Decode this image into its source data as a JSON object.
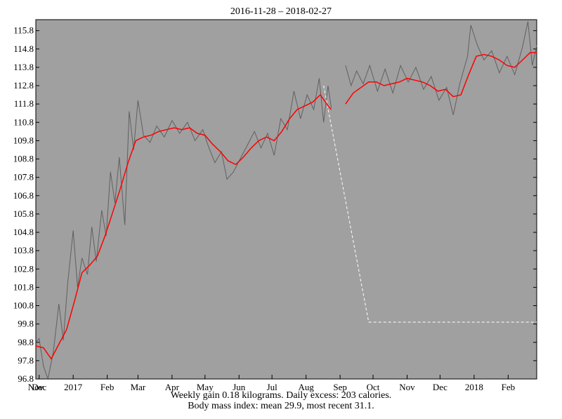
{
  "chart_data": {
    "type": "line",
    "title": "2016-11-28 – 2018-02-27",
    "date_range": [
      "2016-11-28",
      "2018-02-27"
    ],
    "ylim": [
      96.8,
      116.4
    ],
    "y_ticks": [
      96.8,
      97.8,
      98.8,
      99.8,
      100.8,
      101.8,
      102.8,
      103.8,
      104.8,
      105.8,
      106.8,
      107.8,
      108.8,
      109.8,
      110.8,
      111.8,
      112.8,
      113.8,
      114.8,
      115.8
    ],
    "y_tick_labels": [
      "96.8",
      "97.8",
      "98.8",
      "99.8",
      "100.8",
      "101.8",
      "102.8",
      "103.8",
      "104.8",
      "105.8",
      "106.8",
      "107.8",
      "108.8",
      "109.8",
      "110.8",
      "111.8",
      "112.8",
      "113.8",
      "114.8",
      "115.8"
    ],
    "x_ticks": [
      {
        "label": "Nov",
        "date": "2016-11-28"
      },
      {
        "label": "Dec",
        "date": "2016-12-01"
      },
      {
        "label": "2017",
        "date": "2017-01-01"
      },
      {
        "label": "Feb",
        "date": "2017-02-01"
      },
      {
        "label": "Mar",
        "date": "2017-03-01"
      },
      {
        "label": "Apr",
        "date": "2017-04-01"
      },
      {
        "label": "May",
        "date": "2017-05-01"
      },
      {
        "label": "Jun",
        "date": "2017-06-01"
      },
      {
        "label": "Jul",
        "date": "2017-07-01"
      },
      {
        "label": "Aug",
        "date": "2017-08-01"
      },
      {
        "label": "Sep",
        "date": "2017-09-01"
      },
      {
        "label": "Oct",
        "date": "2017-10-01"
      },
      {
        "label": "Nov",
        "date": "2017-11-01"
      },
      {
        "label": "Dec",
        "date": "2017-12-01"
      },
      {
        "label": "2018",
        "date": "2018-01-01"
      },
      {
        "label": "Feb",
        "date": "2018-02-01"
      }
    ],
    "series": [
      {
        "color": "#ff0000",
        "values": [
          [
            "2016-11-28",
            98.6
          ],
          [
            "2016-12-05",
            98.5
          ],
          [
            "2016-12-12",
            97.9
          ],
          [
            "2016-12-19",
            98.7
          ],
          [
            "2016-12-26",
            99.5
          ],
          [
            "2017-01-02",
            101.0
          ],
          [
            "2017-01-09",
            102.6
          ],
          [
            "2017-01-16",
            103.0
          ],
          [
            "2017-01-23",
            103.5
          ],
          [
            "2017-01-30",
            104.6
          ],
          [
            "2017-02-06",
            105.9
          ],
          [
            "2017-02-13",
            107.2
          ],
          [
            "2017-02-20",
            108.6
          ],
          [
            "2017-02-27",
            109.8
          ],
          [
            "2017-03-06",
            110.0
          ],
          [
            "2017-03-13",
            110.1
          ],
          [
            "2017-03-20",
            110.3
          ],
          [
            "2017-03-27",
            110.4
          ],
          [
            "2017-04-03",
            110.5
          ],
          [
            "2017-04-10",
            110.4
          ],
          [
            "2017-04-17",
            110.5
          ],
          [
            "2017-04-24",
            110.2
          ],
          [
            "2017-05-01",
            110.1
          ],
          [
            "2017-05-08",
            109.6
          ],
          [
            "2017-05-15",
            109.2
          ],
          [
            "2017-05-22",
            108.7
          ],
          [
            "2017-05-29",
            108.5
          ],
          [
            "2017-06-05",
            108.9
          ],
          [
            "2017-06-12",
            109.4
          ],
          [
            "2017-06-19",
            109.8
          ],
          [
            "2017-06-26",
            110.0
          ],
          [
            "2017-07-03",
            109.8
          ],
          [
            "2017-07-10",
            110.3
          ],
          [
            "2017-07-17",
            111.0
          ],
          [
            "2017-07-24",
            111.5
          ],
          [
            "2017-07-31",
            111.7
          ],
          [
            "2017-08-07",
            111.9
          ],
          [
            "2017-08-14",
            112.3
          ],
          [
            "2017-08-21",
            111.7
          ],
          [
            "2017-08-24",
            111.5
          ],
          null,
          [
            "2017-09-06",
            111.8
          ],
          [
            "2017-09-13",
            112.4
          ],
          [
            "2017-09-20",
            112.7
          ],
          [
            "2017-09-27",
            113.0
          ],
          [
            "2017-10-04",
            113.0
          ],
          [
            "2017-10-11",
            112.8
          ],
          [
            "2017-10-18",
            112.9
          ],
          [
            "2017-10-25",
            113.0
          ],
          [
            "2017-11-01",
            113.2
          ],
          [
            "2017-11-08",
            113.1
          ],
          [
            "2017-11-15",
            113.0
          ],
          [
            "2017-11-22",
            112.8
          ],
          [
            "2017-11-29",
            112.5
          ],
          [
            "2017-12-06",
            112.6
          ],
          [
            "2017-12-13",
            112.2
          ],
          [
            "2017-12-20",
            112.3
          ],
          [
            "2017-12-27",
            113.4
          ],
          [
            "2018-01-03",
            114.4
          ],
          [
            "2018-01-10",
            114.5
          ],
          [
            "2018-01-17",
            114.4
          ],
          [
            "2018-01-24",
            114.2
          ],
          [
            "2018-01-31",
            113.9
          ],
          [
            "2018-02-07",
            113.8
          ],
          [
            "2018-02-14",
            114.2
          ],
          [
            "2018-02-21",
            114.6
          ],
          [
            "2018-02-27",
            114.6
          ]
        ]
      },
      {
        "color": "#606060",
        "values": [
          [
            "2016-11-28",
            98.8
          ],
          [
            "2016-12-01",
            99.0
          ],
          [
            "2016-12-05",
            97.5
          ],
          [
            "2016-12-09",
            96.8
          ],
          [
            "2016-12-14",
            98.3
          ],
          [
            "2016-12-19",
            100.9
          ],
          [
            "2016-12-23",
            98.9
          ],
          [
            "2016-12-27",
            102.0
          ],
          [
            "2017-01-01",
            104.9
          ],
          [
            "2017-01-05",
            101.8
          ],
          [
            "2017-01-09",
            103.4
          ],
          [
            "2017-01-14",
            102.5
          ],
          [
            "2017-01-18",
            105.1
          ],
          [
            "2017-01-22",
            103.2
          ],
          [
            "2017-01-27",
            106.0
          ],
          [
            "2017-01-31",
            104.6
          ],
          [
            "2017-02-04",
            108.1
          ],
          [
            "2017-02-08",
            106.4
          ],
          [
            "2017-02-12",
            108.9
          ],
          [
            "2017-02-17",
            105.2
          ],
          [
            "2017-02-21",
            111.4
          ],
          [
            "2017-02-25",
            109.3
          ],
          [
            "2017-03-01",
            112.0
          ],
          [
            "2017-03-06",
            110.1
          ],
          [
            "2017-03-12",
            109.7
          ],
          [
            "2017-03-18",
            110.6
          ],
          [
            "2017-03-25",
            110.0
          ],
          [
            "2017-04-01",
            110.9
          ],
          [
            "2017-04-08",
            110.2
          ],
          [
            "2017-04-15",
            110.8
          ],
          [
            "2017-04-22",
            109.8
          ],
          [
            "2017-04-29",
            110.4
          ],
          [
            "2017-05-04",
            109.5
          ],
          [
            "2017-05-10",
            108.6
          ],
          [
            "2017-05-16",
            109.2
          ],
          [
            "2017-05-21",
            107.7
          ],
          [
            "2017-05-27",
            108.1
          ],
          [
            "2017-06-02",
            108.8
          ],
          [
            "2017-06-09",
            109.6
          ],
          [
            "2017-06-15",
            110.3
          ],
          [
            "2017-06-21",
            109.4
          ],
          [
            "2017-06-27",
            110.2
          ],
          [
            "2017-07-03",
            109.0
          ],
          [
            "2017-07-09",
            111.0
          ],
          [
            "2017-07-15",
            110.4
          ],
          [
            "2017-07-21",
            112.5
          ],
          [
            "2017-07-27",
            111.0
          ],
          [
            "2017-08-02",
            112.3
          ],
          [
            "2017-08-08",
            111.5
          ],
          [
            "2017-08-13",
            113.2
          ],
          [
            "2017-08-17",
            110.8
          ],
          [
            "2017-08-21",
            112.8
          ],
          [
            "2017-08-24",
            111.6
          ],
          null,
          [
            "2017-09-06",
            113.9
          ],
          [
            "2017-09-11",
            112.8
          ],
          [
            "2017-09-16",
            113.6
          ],
          [
            "2017-09-22",
            112.9
          ],
          [
            "2017-09-28",
            113.9
          ],
          [
            "2017-10-05",
            112.5
          ],
          [
            "2017-10-12",
            113.7
          ],
          [
            "2017-10-19",
            112.4
          ],
          [
            "2017-10-26",
            113.9
          ],
          [
            "2017-11-02",
            113.0
          ],
          [
            "2017-11-09",
            113.8
          ],
          [
            "2017-11-16",
            112.6
          ],
          [
            "2017-11-23",
            113.3
          ],
          [
            "2017-11-30",
            112.0
          ],
          [
            "2017-12-07",
            112.7
          ],
          [
            "2017-12-13",
            111.2
          ],
          [
            "2017-12-19",
            112.9
          ],
          [
            "2017-12-26",
            114.4
          ],
          [
            "2017-12-29",
            116.1
          ],
          [
            "2018-01-04",
            115.0
          ],
          [
            "2018-01-10",
            114.2
          ],
          [
            "2018-01-17",
            114.7
          ],
          [
            "2018-01-24",
            113.5
          ],
          [
            "2018-01-31",
            114.4
          ],
          [
            "2018-02-07",
            113.4
          ],
          [
            "2018-02-14",
            114.9
          ],
          [
            "2018-02-19",
            116.3
          ],
          [
            "2018-02-23",
            113.9
          ],
          [
            "2018-02-27",
            115.0
          ]
        ]
      },
      {
        "color": "#ffffff",
        "style": "dashed",
        "values": [
          [
            "2017-08-17",
            112.8
          ],
          [
            "2017-09-27",
            99.9
          ],
          [
            "2018-02-27",
            99.9
          ]
        ]
      }
    ],
    "caption_lines": [
      "Weekly gain 0.18 kilograms.  Daily excess: 203 calories.",
      "Body mass index: mean 29.9, most recent 31.1."
    ]
  }
}
